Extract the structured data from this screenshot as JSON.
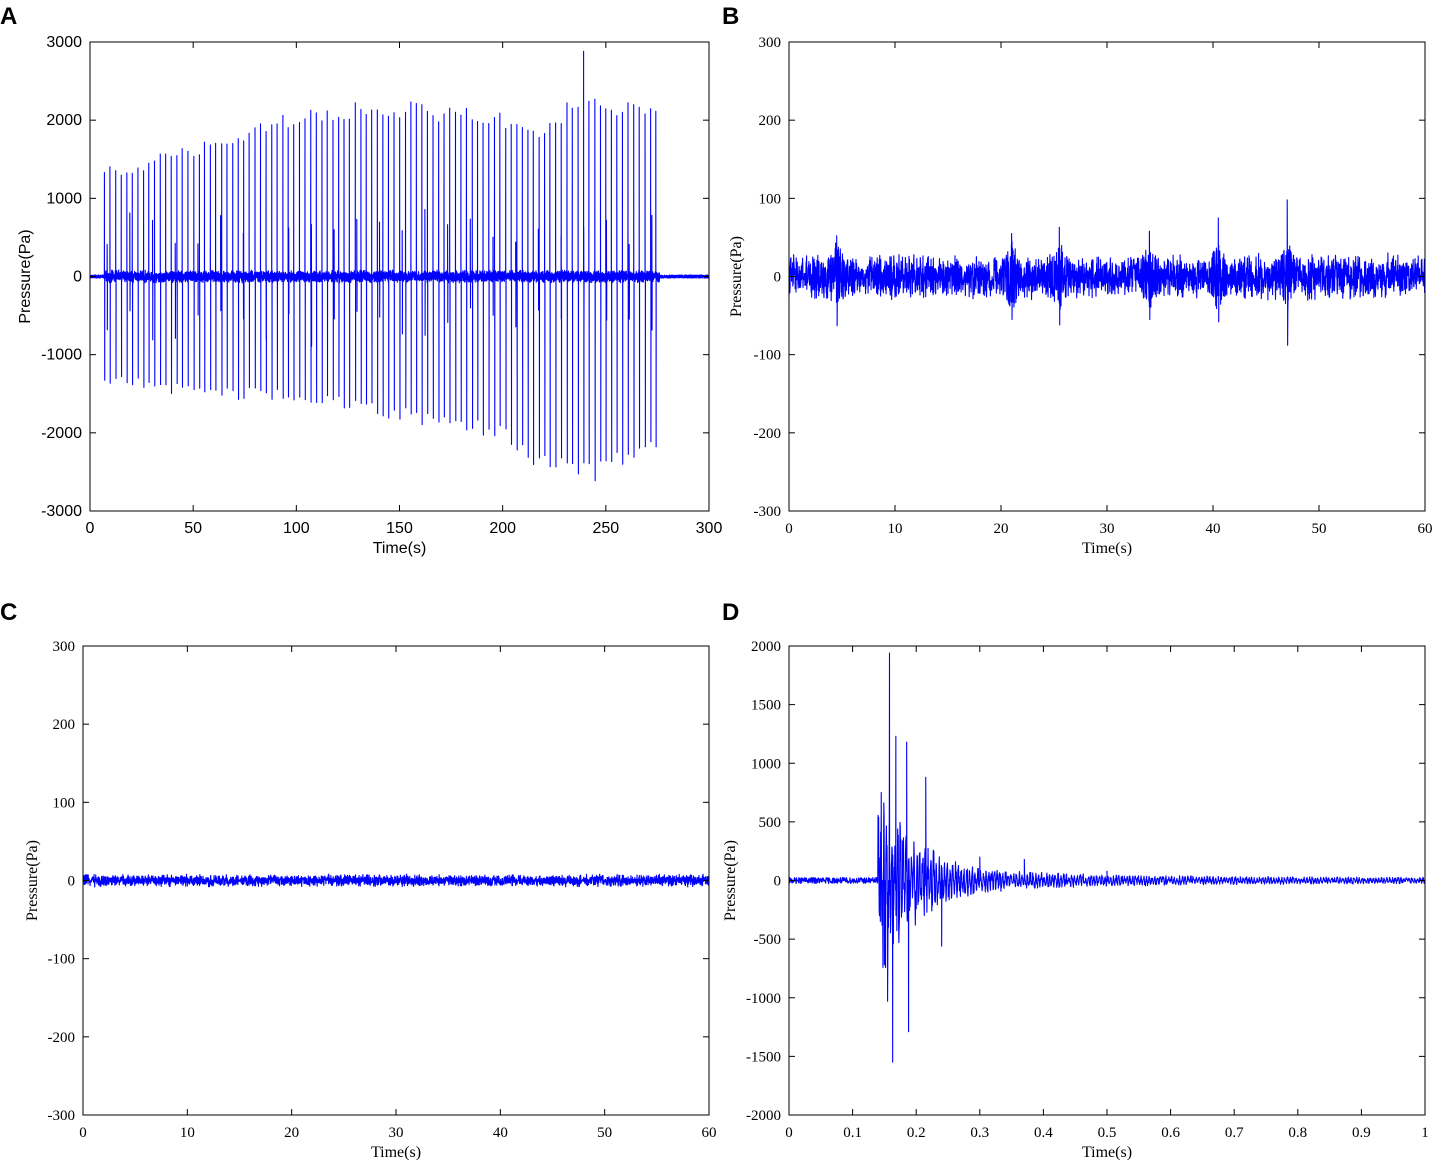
{
  "chart_data": [
    {
      "panel": "A",
      "type": "line",
      "xlabel": "Time(s)",
      "ylabel": "Pressure(Pa)",
      "xlim": [
        0,
        300
      ],
      "ylim": [
        -3000,
        3000
      ],
      "xticks": [
        0,
        50,
        100,
        150,
        200,
        250,
        300
      ],
      "yticks": [
        -3000,
        -2000,
        -1000,
        0,
        1000,
        2000,
        3000
      ],
      "series": [
        {
          "color": "#0000ff",
          "signal": "periodic pressure spikes with baseline noise",
          "active_range": [
            7,
            276
          ],
          "spike_period": 2.7,
          "baseline_noise": 60,
          "peak_envelope": {
            "x": [
              7,
              20,
              50,
              100,
              130,
              150,
              200,
              215,
              235,
              250,
              276
            ],
            "y": [
              1400,
              1450,
              1700,
              2150,
              2250,
              2250,
              2100,
              1900,
              2300,
              2300,
              2150
            ]
          },
          "trough_envelope": {
            "x": [
              7,
              20,
              50,
              100,
              150,
              200,
              215,
              235,
              250,
              276
            ],
            "y": [
              -1450,
              -1400,
              -1550,
              -1600,
              -1850,
              -2100,
              -2450,
              -2600,
              -2500,
              -2200
            ]
          },
          "max_peak": {
            "x": 238,
            "y": 2930
          },
          "min_trough": {
            "x": 245,
            "y": -2660
          }
        }
      ]
    },
    {
      "panel": "B",
      "type": "line",
      "xlabel": "Time(s)",
      "ylabel": "Pressure(Pa)",
      "xlim": [
        0,
        60
      ],
      "ylim": [
        -300,
        300
      ],
      "xticks": [
        0,
        10,
        20,
        30,
        40,
        50,
        60
      ],
      "yticks": [
        -300,
        -200,
        -100,
        0,
        100,
        200,
        300
      ],
      "series": [
        {
          "color": "#0000ff",
          "signal": "noise",
          "noise_amplitude": 22,
          "bursts": [
            {
              "x": 4.5,
              "max": 52,
              "min": -63
            },
            {
              "x": 21,
              "max": 55,
              "min": -55
            },
            {
              "x": 25.5,
              "max": 63,
              "min": -62
            },
            {
              "x": 34,
              "max": 58,
              "min": -55
            },
            {
              "x": 40.5,
              "max": 75,
              "min": -58
            },
            {
              "x": 47,
              "max": 98,
              "min": -88
            }
          ]
        }
      ]
    },
    {
      "panel": "C",
      "type": "line",
      "xlabel": "Time(s)",
      "ylabel": "Pressure(Pa)",
      "xlim": [
        0,
        60
      ],
      "ylim": [
        -300,
        300
      ],
      "xticks": [
        0,
        10,
        20,
        30,
        40,
        50,
        60
      ],
      "yticks": [
        -300,
        -200,
        -100,
        0,
        100,
        200,
        300
      ],
      "series": [
        {
          "color": "#0000ff",
          "signal": "low noise",
          "noise_amplitude": 6,
          "max": 12,
          "min": -12
        }
      ]
    },
    {
      "panel": "D",
      "type": "line",
      "xlabel": "Time(s)",
      "ylabel": "Pressure(Pa)",
      "xlim": [
        0,
        1
      ],
      "ylim": [
        -2000,
        2000
      ],
      "xticks": [
        0,
        0.1,
        0.2,
        0.3,
        0.4,
        0.5,
        0.6,
        0.7,
        0.8,
        0.9,
        1
      ],
      "yticks": [
        -2000,
        -1500,
        -1000,
        -500,
        0,
        500,
        1000,
        1500,
        2000
      ],
      "series": [
        {
          "color": "#0000ff",
          "signal": "impulse with decaying oscillation",
          "onset": 0.14,
          "baseline_noise": 25,
          "peaks": [
            {
              "x": 0.145,
              "y": 750
            },
            {
              "x": 0.15,
              "y": -720
            },
            {
              "x": 0.158,
              "y": 1940
            },
            {
              "x": 0.155,
              "y": -1030
            },
            {
              "x": 0.163,
              "y": -1550
            },
            {
              "x": 0.168,
              "y": 1230
            },
            {
              "x": 0.185,
              "y": 1180
            },
            {
              "x": 0.188,
              "y": -1290
            },
            {
              "x": 0.215,
              "y": 880
            },
            {
              "x": 0.24,
              "y": -560
            },
            {
              "x": 0.3,
              "y": 200
            },
            {
              "x": 0.37,
              "y": 180
            },
            {
              "x": 0.5,
              "y": 80
            }
          ]
        }
      ]
    }
  ]
}
